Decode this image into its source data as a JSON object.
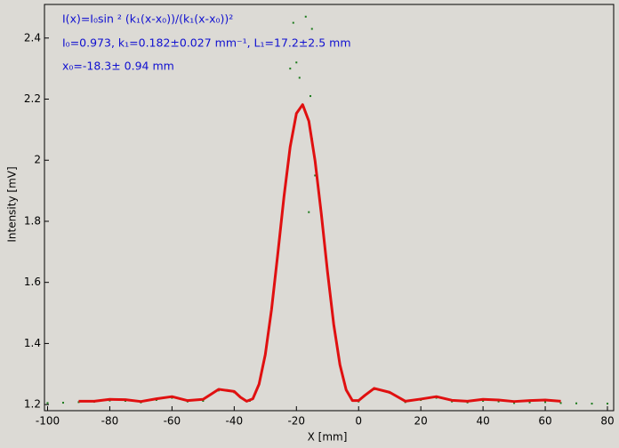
{
  "chart_data": {
    "type": "scatter",
    "xlabel": "X [mm]",
    "ylabel": "Intensity [mV]",
    "annotations": [
      "I(x)=I₀sin ² (k₁(x-x₀))/(k₁(x-x₀))²",
      "I₀=0.973,  k₁=0.182±0.027 mm⁻¹,   L₁=17.2±2.5 mm",
      "x₀=-18.3±   0.94 mm"
    ],
    "xlim": [
      -101,
      82
    ],
    "ylim": [
      1.18,
      2.51
    ],
    "xticks": [
      -100,
      -80,
      -60,
      -40,
      -20,
      0,
      20,
      40,
      60,
      80
    ],
    "yticks": [
      1.2,
      1.4,
      1.6,
      1.8,
      2,
      2.2,
      2.4
    ],
    "series": [
      {
        "mode": "markers",
        "color": "#1a7a1a",
        "x": [
          -100,
          -95,
          -90,
          -85,
          -80,
          -75,
          -70,
          -65,
          -60,
          -55,
          -50,
          -45,
          -40,
          -35,
          -30,
          -25,
          -20,
          -15,
          -10,
          -5,
          0,
          5,
          10,
          15,
          20,
          25,
          30,
          35,
          40,
          45,
          50,
          55,
          60,
          65,
          70,
          75,
          80,
          -22,
          -21,
          -20,
          -17,
          -15,
          -15.5,
          -14,
          -16,
          -22.5,
          -19
        ],
        "y": [
          1.205,
          1.206,
          1.208,
          1.209,
          1.213,
          1.212,
          1.207,
          1.215,
          1.222,
          1.21,
          1.212,
          1.246,
          1.24,
          1.212,
          1.36,
          1.79,
          2.15,
          2.07,
          1.64,
          1.29,
          1.21,
          1.25,
          1.238,
          1.208,
          1.215,
          1.222,
          1.21,
          1.207,
          1.212,
          1.21,
          1.205,
          1.207,
          1.208,
          1.205,
          1.204,
          1.203,
          1.203,
          2.3,
          2.45,
          2.32,
          2.47,
          2.43,
          2.21,
          1.95,
          1.83,
          2.0,
          2.27
        ]
      },
      {
        "mode": "line",
        "color": "#e01010",
        "x": [
          -90,
          -85,
          -80,
          -75,
          -70,
          -65,
          -60,
          -55,
          -50,
          -45,
          -40,
          -38,
          -36,
          -34,
          -32,
          -30,
          -28,
          -26,
          -24,
          -22,
          -20,
          -18,
          -16,
          -14,
          -12,
          -10,
          -8,
          -6,
          -4,
          -2,
          0,
          2,
          5,
          10,
          15,
          20,
          25,
          30,
          35,
          40,
          45,
          50,
          55,
          60,
          65
        ],
        "y": [
          1.211,
          1.211,
          1.217,
          1.216,
          1.21,
          1.219,
          1.226,
          1.213,
          1.217,
          1.25,
          1.243,
          1.224,
          1.211,
          1.219,
          1.267,
          1.364,
          1.511,
          1.692,
          1.88,
          2.044,
          2.153,
          2.182,
          2.128,
          1.998,
          1.825,
          1.635,
          1.462,
          1.33,
          1.248,
          1.213,
          1.213,
          1.23,
          1.253,
          1.24,
          1.211,
          1.218,
          1.226,
          1.214,
          1.211,
          1.217,
          1.215,
          1.21,
          1.213,
          1.215,
          1.211
        ]
      }
    ]
  }
}
